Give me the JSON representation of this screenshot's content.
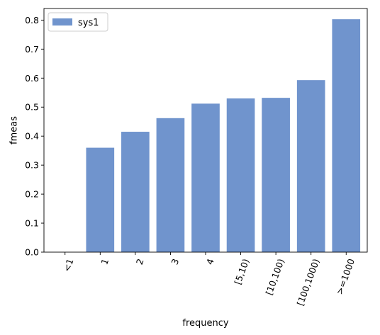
{
  "chart_data": {
    "type": "bar",
    "categories": [
      "<1",
      "1",
      "2",
      "3",
      "4",
      "[5,10)",
      "[10,100)",
      "[100,1000)",
      ">=1000"
    ],
    "series": [
      {
        "name": "sys1",
        "values": [
          0.0,
          0.36,
          0.415,
          0.462,
          0.512,
          0.53,
          0.532,
          0.593,
          0.803
        ],
        "color": "#7094cd"
      }
    ],
    "xlabel": "frequency",
    "ylabel": "fmeas",
    "ylim": [
      0,
      0.84
    ],
    "yticks": [
      0.0,
      0.1,
      0.2,
      0.3,
      0.4,
      0.5,
      0.6,
      0.7,
      0.8
    ],
    "ytick_labels": [
      "0.0",
      "0.1",
      "0.2",
      "0.3",
      "0.4",
      "0.5",
      "0.6",
      "0.7",
      "0.8"
    ],
    "grid": false,
    "legend_position": "top-left",
    "xtick_rotation": -70
  }
}
